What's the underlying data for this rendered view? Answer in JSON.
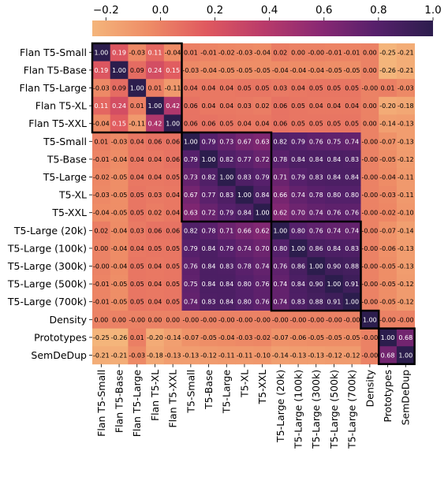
{
  "chart_data": {
    "type": "heatmap",
    "title": "",
    "xlabel": "",
    "ylabel": "",
    "labels": [
      "Flan T5-Small",
      "Flan T5-Base",
      "Flan T5-Large",
      "Flan T5-XL",
      "Flan T5-XXL",
      "T5-Small",
      "T5-Base",
      "T5-Large",
      "T5-XL",
      "T5-XXL",
      "T5-Large (20k)",
      "T5-Large (100k)",
      "T5-Large (300k)",
      "T5-Large (500k)",
      "T5-Large (700k)",
      "Density",
      "Prototypes",
      "SemDeDup"
    ],
    "value_labels": [
      [
        "1.00",
        "0.19",
        "-0.03",
        "0.11",
        "-0.04",
        "0.01",
        "-0.01",
        "-0.02",
        "-0.03",
        "-0.04",
        "0.02",
        "0.00",
        "-0.00",
        "-0.01",
        "-0.01",
        "0.00",
        "-0.25",
        "-0.21"
      ],
      [
        "0.19",
        "1.00",
        "0.09",
        "0.24",
        "0.15",
        "-0.03",
        "-0.04",
        "-0.05",
        "-0.05",
        "-0.05",
        "-0.04",
        "-0.04",
        "-0.04",
        "-0.05",
        "-0.05",
        "0.00",
        "-0.26",
        "-0.21"
      ],
      [
        "-0.03",
        "0.09",
        "1.00",
        "0.01",
        "-0.11",
        "0.04",
        "0.04",
        "0.04",
        "0.05",
        "0.05",
        "0.03",
        "0.04",
        "0.05",
        "0.05",
        "0.05",
        "-0.00",
        "0.01",
        "-0.03"
      ],
      [
        "0.11",
        "0.24",
        "0.01",
        "1.00",
        "0.42",
        "0.06",
        "0.04",
        "0.04",
        "0.03",
        "0.02",
        "0.06",
        "0.05",
        "0.04",
        "0.04",
        "0.04",
        "0.00",
        "-0.20",
        "-0.18"
      ],
      [
        "-0.04",
        "0.15",
        "-0.11",
        "0.42",
        "1.00",
        "0.06",
        "0.06",
        "0.05",
        "0.04",
        "0.04",
        "0.06",
        "0.05",
        "0.05",
        "0.05",
        "0.05",
        "0.00",
        "-0.14",
        "-0.13"
      ],
      [
        "0.01",
        "-0.03",
        "0.04",
        "0.06",
        "0.06",
        "1.00",
        "0.79",
        "0.73",
        "0.67",
        "0.63",
        "0.82",
        "0.79",
        "0.76",
        "0.75",
        "0.74",
        "-0.00",
        "-0.07",
        "-0.13"
      ],
      [
        "-0.01",
        "-0.04",
        "0.04",
        "0.04",
        "0.06",
        "0.79",
        "1.00",
        "0.82",
        "0.77",
        "0.72",
        "0.78",
        "0.84",
        "0.84",
        "0.84",
        "0.83",
        "-0.00",
        "-0.05",
        "-0.12"
      ],
      [
        "-0.02",
        "-0.05",
        "0.04",
        "0.04",
        "0.05",
        "0.73",
        "0.82",
        "1.00",
        "0.83",
        "0.79",
        "0.71",
        "0.79",
        "0.83",
        "0.84",
        "0.84",
        "-0.00",
        "-0.04",
        "-0.11"
      ],
      [
        "-0.03",
        "-0.05",
        "0.05",
        "0.03",
        "0.04",
        "0.67",
        "0.77",
        "0.83",
        "1.00",
        "0.84",
        "0.66",
        "0.74",
        "0.78",
        "0.80",
        "0.80",
        "-0.00",
        "-0.03",
        "-0.11"
      ],
      [
        "-0.04",
        "-0.05",
        "0.05",
        "0.02",
        "0.04",
        "0.63",
        "0.72",
        "0.79",
        "0.84",
        "1.00",
        "0.62",
        "0.70",
        "0.74",
        "0.76",
        "0.76",
        "-0.00",
        "-0.02",
        "-0.10"
      ],
      [
        "0.02",
        "-0.04",
        "0.03",
        "0.06",
        "0.06",
        "0.82",
        "0.78",
        "0.71",
        "0.66",
        "0.62",
        "1.00",
        "0.80",
        "0.76",
        "0.74",
        "0.74",
        "-0.00",
        "-0.07",
        "-0.14"
      ],
      [
        "0.00",
        "-0.04",
        "0.04",
        "0.05",
        "0.05",
        "0.79",
        "0.84",
        "0.79",
        "0.74",
        "0.70",
        "0.80",
        "1.00",
        "0.86",
        "0.84",
        "0.83",
        "-0.00",
        "-0.06",
        "-0.13"
      ],
      [
        "-0.00",
        "-0.04",
        "0.05",
        "0.04",
        "0.05",
        "0.76",
        "0.84",
        "0.83",
        "0.78",
        "0.74",
        "0.76",
        "0.86",
        "1.00",
        "0.90",
        "0.88",
        "-0.00",
        "-0.05",
        "-0.13"
      ],
      [
        "-0.01",
        "-0.05",
        "0.05",
        "0.04",
        "0.05",
        "0.75",
        "0.84",
        "0.84",
        "0.80",
        "0.76",
        "0.74",
        "0.84",
        "0.90",
        "1.00",
        "0.91",
        "-0.00",
        "-0.05",
        "-0.12"
      ],
      [
        "-0.01",
        "-0.05",
        "0.05",
        "0.04",
        "0.05",
        "0.74",
        "0.83",
        "0.84",
        "0.80",
        "0.76",
        "0.74",
        "0.83",
        "0.88",
        "0.91",
        "1.00",
        "-0.00",
        "-0.05",
        "-0.12"
      ],
      [
        "0.00",
        "0.00",
        "-0.00",
        "0.00",
        "0.00",
        "-0.00",
        "-0.00",
        "-0.00",
        "-0.00",
        "-0.00",
        "-0.00",
        "-0.00",
        "-0.00",
        "-0.00",
        "-0.00",
        "1.00",
        "-0.00",
        "-0.00"
      ],
      [
        "-0.25",
        "-0.26",
        "0.01",
        "-0.20",
        "-0.14",
        "-0.07",
        "-0.05",
        "-0.04",
        "-0.03",
        "-0.02",
        "-0.07",
        "-0.06",
        "-0.05",
        "-0.05",
        "-0.05",
        "-0.00",
        "1.00",
        "0.68"
      ],
      [
        "-0.21",
        "-0.21",
        "-0.03",
        "-0.18",
        "-0.13",
        "-0.13",
        "-0.12",
        "-0.11",
        "-0.11",
        "-0.10",
        "-0.14",
        "-0.13",
        "-0.13",
        "-0.12",
        "-0.12",
        "-0.00",
        "0.68",
        "1.00"
      ]
    ],
    "colorbar": {
      "range": [
        -0.25,
        1.0
      ],
      "ticks": [
        -0.2,
        0.0,
        0.2,
        0.4,
        0.6,
        0.8,
        1.0
      ],
      "tick_labels": [
        "−0.2",
        "0.0",
        "0.2",
        "0.4",
        "0.6",
        "0.8",
        "1.0"
      ],
      "position": "top"
    },
    "groups": [
      {
        "start": 0,
        "end": 4
      },
      {
        "start": 5,
        "end": 9
      },
      {
        "start": 10,
        "end": 14
      },
      {
        "start": 15,
        "end": 15
      },
      {
        "start": 16,
        "end": 17
      }
    ],
    "colormap_stops": [
      "#F4B57B",
      "#EE8C66",
      "#E0595F",
      "#BA3B6A",
      "#8A2873",
      "#56206B",
      "#2C1D4D"
    ],
    "text_color_light": "#ffffff",
    "text_color_dark": "#000000",
    "block_outline_color": "#000000"
  }
}
